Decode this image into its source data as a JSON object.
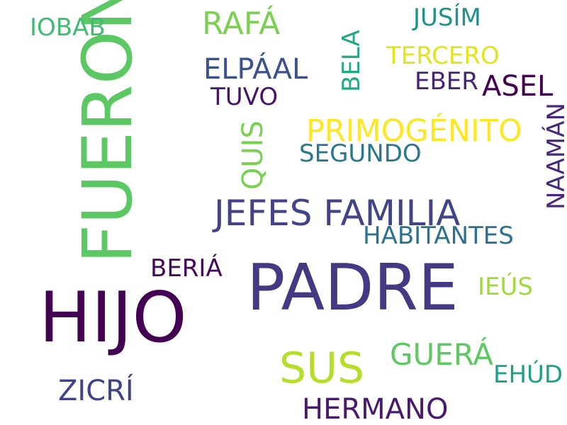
{
  "words": {
    "fueron": {
      "text": "FUERON",
      "color": "#5cc863"
    },
    "hijo": {
      "text": "HIJO",
      "color": "#440154"
    },
    "padre": {
      "text": "PADRE",
      "color": "#443983"
    },
    "jefes_familia": {
      "text": "JEFES FAMILIA",
      "color": "#414487"
    },
    "sus": {
      "text": "SUS",
      "color": "#b5de2b"
    },
    "primogenito": {
      "text": "PRIMOGÉNITO",
      "color": "#fde725"
    },
    "hermano": {
      "text": "HERMANO",
      "color": "#481a6c"
    },
    "elpaal": {
      "text": "ELPÁAL",
      "color": "#3b528b"
    },
    "rafa": {
      "text": "RAFÁ",
      "color": "#7ad151"
    },
    "habitantes": {
      "text": "HABITANTES",
      "color": "#2c728e"
    },
    "zicri": {
      "text": "ZICRÍ",
      "color": "#404387"
    },
    "guera": {
      "text": "GUERÁ",
      "color": "#5ec962"
    },
    "asel": {
      "text": "ASEL",
      "color": "#440154"
    },
    "segundo": {
      "text": "SEGUNDO",
      "color": "#2a788e"
    },
    "tercero": {
      "text": "TERCERO",
      "color": "#e5e419"
    },
    "quis": {
      "text": "QUIS",
      "color": "#7ad151"
    },
    "beria": {
      "text": "BERIÁ",
      "color": "#46085c"
    },
    "jusim": {
      "text": "JUSÍM",
      "color": "#21918c"
    },
    "iobab": {
      "text": "IOBAB",
      "color": "#3fbc73"
    },
    "bela": {
      "text": "BELA",
      "color": "#22a884"
    },
    "eber": {
      "text": "EBER",
      "color": "#482475"
    },
    "tuvo": {
      "text": "TUVO",
      "color": "#481467"
    },
    "naaman": {
      "text": "NAAMÁN",
      "color": "#482878"
    },
    "ieus": {
      "text": "IEÚS",
      "color": "#a0da39"
    },
    "ehud": {
      "text": "EHÚD",
      "color": "#1fa088"
    }
  }
}
